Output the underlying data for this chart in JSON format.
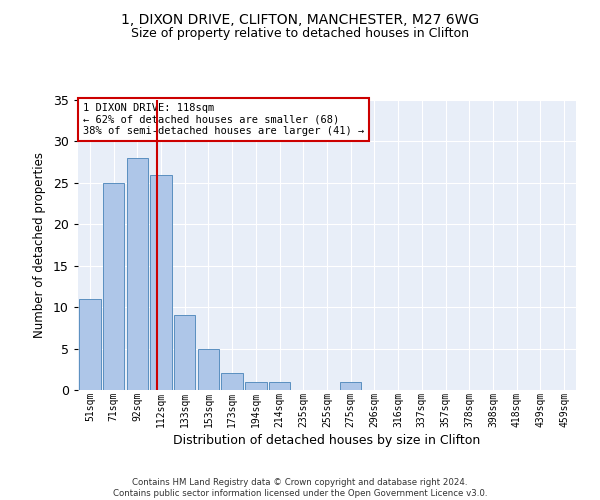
{
  "title1": "1, DIXON DRIVE, CLIFTON, MANCHESTER, M27 6WG",
  "title2": "Size of property relative to detached houses in Clifton",
  "xlabel": "Distribution of detached houses by size in Clifton",
  "ylabel": "Number of detached properties",
  "categories": [
    "51sqm",
    "71sqm",
    "92sqm",
    "112sqm",
    "133sqm",
    "153sqm",
    "173sqm",
    "194sqm",
    "214sqm",
    "235sqm",
    "255sqm",
    "275sqm",
    "296sqm",
    "316sqm",
    "337sqm",
    "357sqm",
    "378sqm",
    "398sqm",
    "418sqm",
    "439sqm",
    "459sqm"
  ],
  "values": [
    11,
    25,
    28,
    26,
    9,
    5,
    2,
    1,
    1,
    0,
    0,
    1,
    0,
    0,
    0,
    0,
    0,
    0,
    0,
    0,
    0
  ],
  "bar_color": "#aec6e8",
  "bar_edge_color": "#5a8fc0",
  "ylim": [
    0,
    35
  ],
  "yticks": [
    0,
    5,
    10,
    15,
    20,
    25,
    30,
    35
  ],
  "vline_x": 2.85,
  "vline_color": "#cc0000",
  "annotation_text": "1 DIXON DRIVE: 118sqm\n← 62% of detached houses are smaller (68)\n38% of semi-detached houses are larger (41) →",
  "annotation_box_color": "#cc0000",
  "footer_line1": "Contains HM Land Registry data © Crown copyright and database right 2024.",
  "footer_line2": "Contains public sector information licensed under the Open Government Licence v3.0.",
  "bg_color": "#e8eef8",
  "fig_bg_color": "#ffffff",
  "grid_color": "#ffffff"
}
